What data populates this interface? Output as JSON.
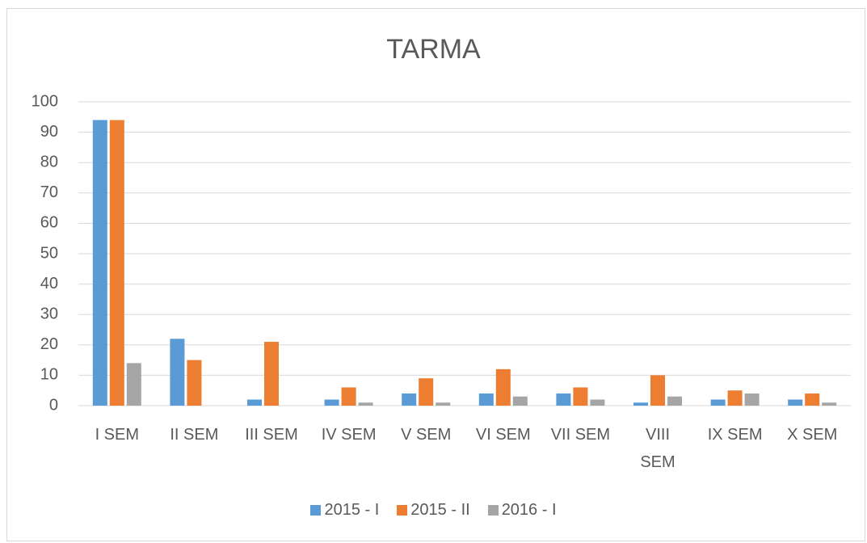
{
  "chart_data": {
    "type": "bar",
    "title": "TARMA",
    "categories": [
      "I SEM",
      "II SEM",
      "III SEM",
      "IV SEM",
      "V SEM",
      "VI SEM",
      "VII SEM",
      "VIII SEM",
      "IX SEM",
      "X SEM"
    ],
    "series": [
      {
        "name": "2015 - I",
        "color": "#5b9bd5",
        "values": [
          94,
          22,
          2,
          2,
          4,
          4,
          4,
          1,
          2,
          2
        ]
      },
      {
        "name": "2015 - II",
        "color": "#ed7d31",
        "values": [
          94,
          15,
          21,
          6,
          9,
          12,
          6,
          10,
          5,
          4
        ]
      },
      {
        "name": "2016 - I",
        "color": "#a5a5a5",
        "values": [
          14,
          0,
          0,
          1,
          1,
          3,
          2,
          3,
          4,
          1
        ]
      }
    ],
    "ylim": [
      0,
      100
    ],
    "yticks": [
      0,
      10,
      20,
      30,
      40,
      50,
      60,
      70,
      80,
      90,
      100
    ],
    "grid": true,
    "legend": "bottom"
  }
}
